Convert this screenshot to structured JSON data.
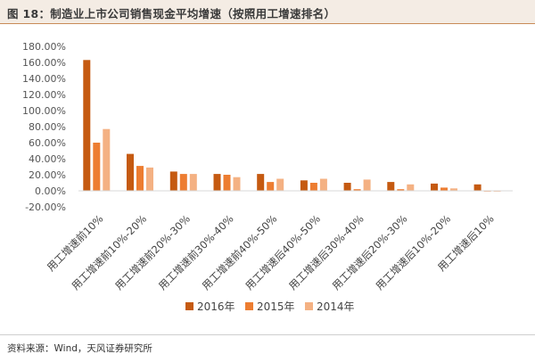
{
  "figure": {
    "title": "图 18：制造业上市公司销售现金平均增速（按照用工增速排名）",
    "source": "资料来源：Wind，天风证券研究所"
  },
  "chart_data": {
    "type": "bar",
    "categories": [
      "用工增速前10%",
      "用工增速前10%-20%",
      "用工增速前20%-30%",
      "用工增速前30%-40%",
      "用工增速前40%-50%",
      "用工增速后40%-50%",
      "用工增速后30%-40%",
      "用工增速后20%-30%",
      "用工增速后10%-20%",
      "用工增速后10%"
    ],
    "series": [
      {
        "name": "2016年",
        "color": "#c55a11",
        "values": [
          163,
          46,
          24,
          21,
          21,
          13,
          10,
          11,
          9,
          8
        ]
      },
      {
        "name": "2015年",
        "color": "#ed7d31",
        "values": [
          60,
          31,
          21,
          20,
          11,
          10,
          2,
          2,
          4,
          0
        ]
      },
      {
        "name": "2014年",
        "color": "#f4b183",
        "values": [
          77,
          29,
          21,
          17,
          15,
          15,
          14,
          8,
          3,
          -1
        ]
      }
    ],
    "ylim": [
      -20,
      180
    ],
    "yticks": [
      -20,
      0,
      20,
      40,
      60,
      80,
      100,
      120,
      140,
      160,
      180
    ],
    "ytick_labels": [
      "-20.00%",
      "0.00%",
      "20.00%",
      "40.00%",
      "60.00%",
      "80.00%",
      "100.00%",
      "120.00%",
      "140.00%",
      "160.00%",
      "180.00%"
    ],
    "xlabel": "",
    "ylabel": "",
    "grid": false,
    "legend_position": "bottom"
  }
}
